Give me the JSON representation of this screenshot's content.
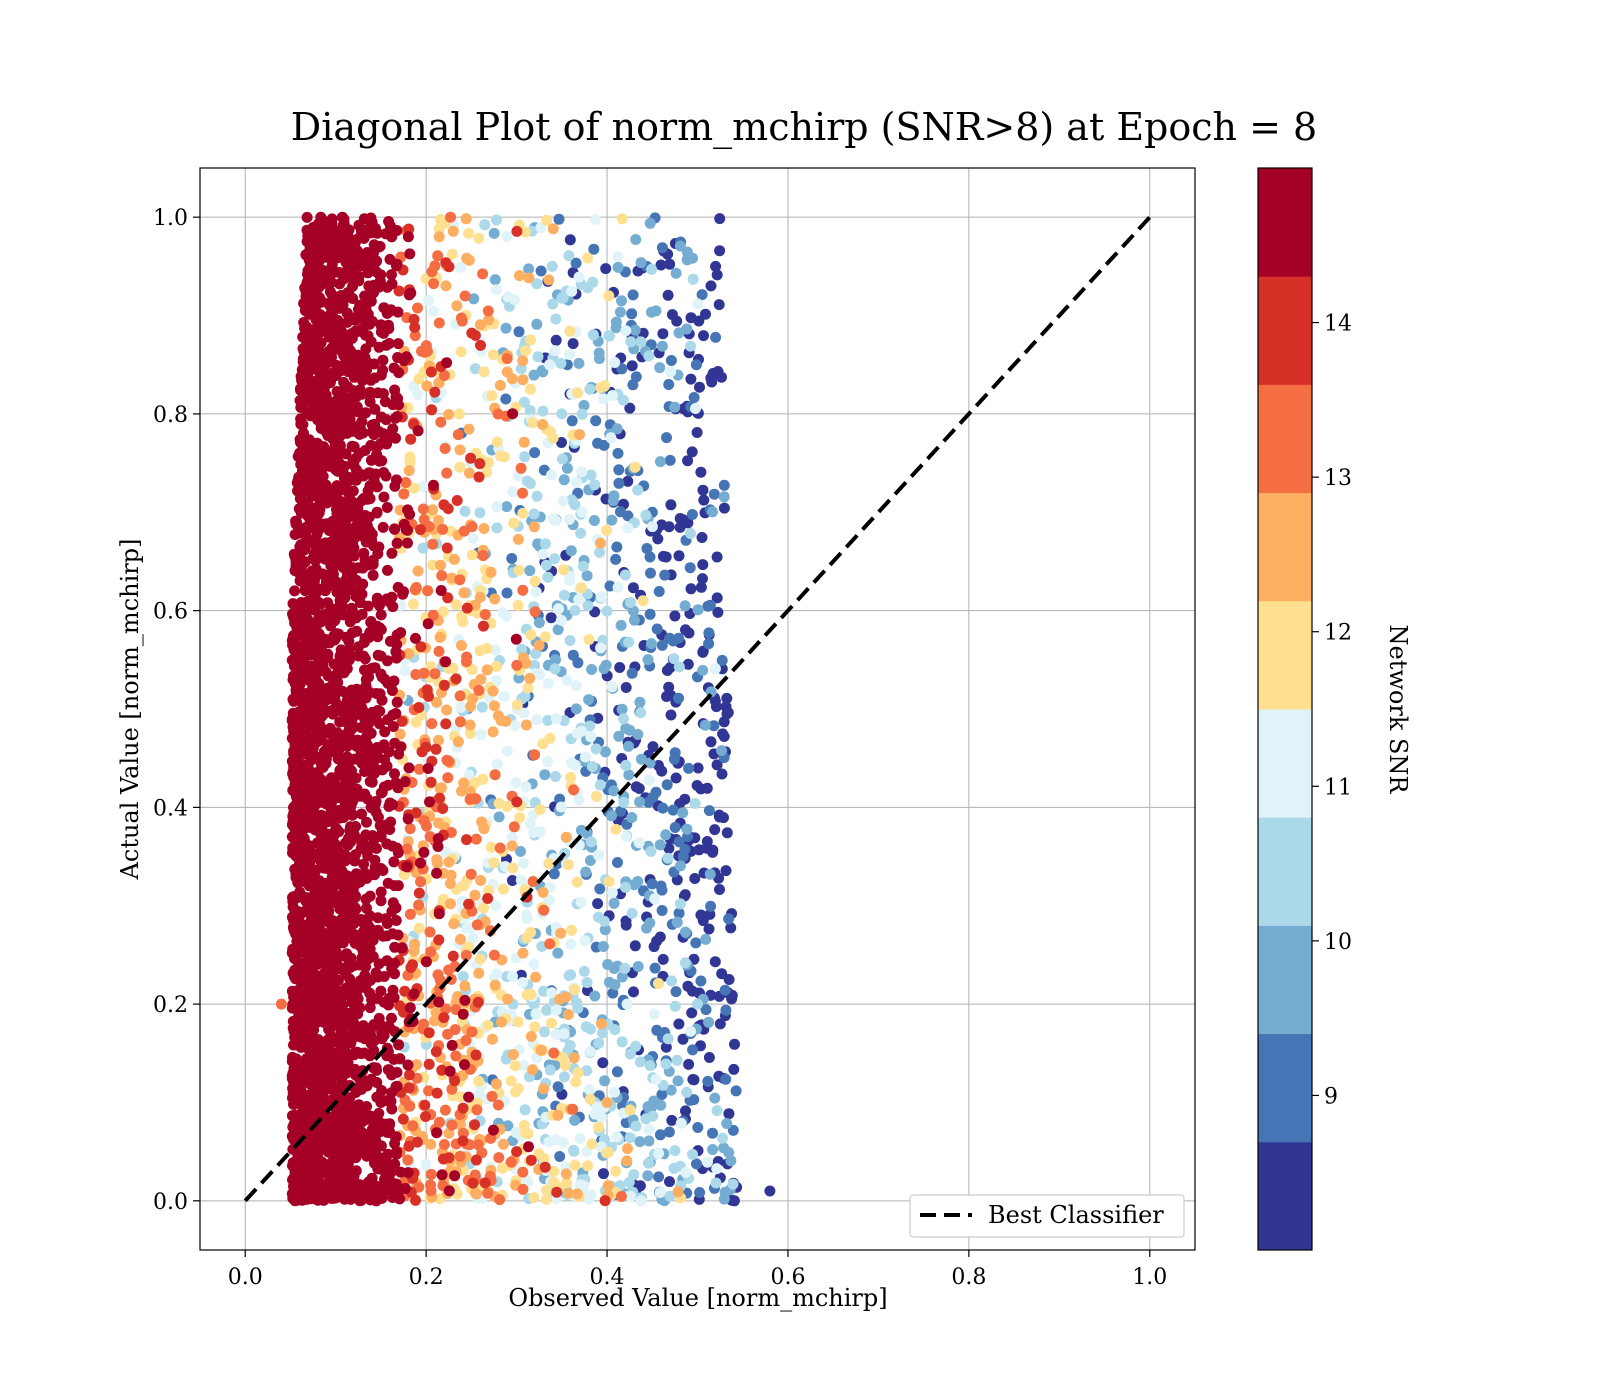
{
  "chart_data": {
    "type": "scatter",
    "title": "Diagonal Plot of norm_mchirp (SNR>8) at Epoch = 8",
    "xlabel": "Observed Value [norm_mchirp]",
    "ylabel": "Actual Value [norm_mchirp]",
    "xlim": [
      -0.05,
      1.05
    ],
    "ylim": [
      -0.05,
      1.05
    ],
    "x_ticks": [
      "0.0",
      "0.2",
      "0.4",
      "0.6",
      "0.8",
      "1.0"
    ],
    "y_ticks": [
      "0.0",
      "0.2",
      "0.4",
      "0.6",
      "0.8",
      "1.0"
    ],
    "grid": true,
    "legend": {
      "position": "lower-right",
      "entries": [
        "Best Classifier"
      ]
    },
    "reference_line": {
      "name": "Best Classifier",
      "style": "dashed",
      "color": "#000000",
      "x": [
        0.0,
        1.0
      ],
      "y": [
        0.0,
        1.0
      ]
    },
    "colorbar": {
      "label": "Network SNR",
      "range": [
        8,
        15
      ],
      "ticks": [
        "9",
        "10",
        "11",
        "12",
        "13",
        "14"
      ],
      "colors": [
        "#313695",
        "#4575b4",
        "#74add1",
        "#abd9e9",
        "#e0f3f8",
        "#fee090",
        "#fdae61",
        "#f46d43",
        "#d73027",
        "#a50026"
      ]
    },
    "series": [
      {
        "description": "scatter points colored by Network SNR; observed values span roughly 0.05-0.58, actual values 0-1",
        "points_sample": [
          {
            "x": 0.12,
            "y": 0.95,
            "snr": 14.8
          },
          {
            "x": 0.1,
            "y": 0.5,
            "snr": 14.9
          },
          {
            "x": 0.15,
            "y": 0.1,
            "snr": 14.7
          },
          {
            "x": 0.25,
            "y": 0.6,
            "snr": 12.2
          },
          {
            "x": 0.35,
            "y": 0.8,
            "snr": 10.5
          },
          {
            "x": 0.45,
            "y": 0.7,
            "snr": 8.8
          },
          {
            "x": 0.5,
            "y": 0.2,
            "snr": 10.2
          },
          {
            "x": 0.4,
            "y": 0.1,
            "snr": 12.6
          },
          {
            "x": 0.3,
            "y": 0.05,
            "snr": 13.8
          },
          {
            "x": 0.52,
            "y": 0.95,
            "snr": 8.5
          },
          {
            "x": 0.58,
            "y": 0.01,
            "snr": 8.6
          },
          {
            "x": 0.04,
            "y": 0.2,
            "snr": 13.2
          }
        ]
      }
    ]
  }
}
